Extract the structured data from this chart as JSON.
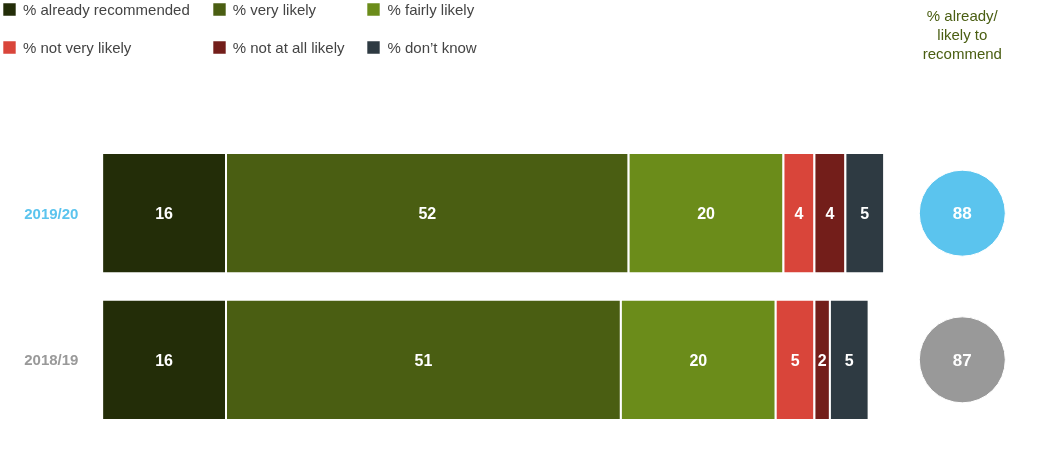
{
  "chart_data": {
    "type": "bar",
    "orientation": "horizontal",
    "stacked": true,
    "data_labels": true,
    "legend": "top",
    "grid": false,
    "categories": [
      "2019/20",
      "2018/19"
    ],
    "series": [
      {
        "name": "% already recommended",
        "color": "#232d08",
        "values": [
          16,
          16
        ]
      },
      {
        "name": "% very likely",
        "color": "#4a5e12",
        "values": [
          52,
          51
        ]
      },
      {
        "name": "% fairly likely",
        "color": "#6b8c1a",
        "values": [
          20,
          20
        ]
      },
      {
        "name": "% not very likely",
        "color": "#d9453a",
        "values": [
          4,
          5
        ]
      },
      {
        "name": "% not at all likely",
        "color": "#731e1a",
        "values": [
          4,
          2
        ]
      },
      {
        "name": "% don’t know",
        "color": "#2e3a42",
        "values": [
          5,
          5
        ]
      }
    ],
    "annotations": [
      "% already/\nlikely to\nrecommend",
      "88",
      "87"
    ]
  }
}
